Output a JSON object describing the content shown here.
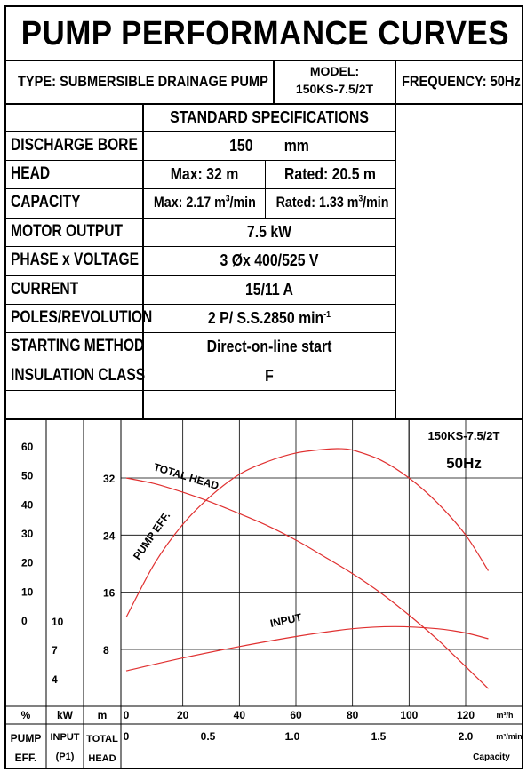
{
  "title": "PUMP PERFORMANCE CURVES",
  "header": {
    "type": "TYPE: SUBMERSIBLE  DRAINAGE  PUMP",
    "model_label": "MODEL:",
    "model_value": "150KS-7.5/2T",
    "frequency": "FREQUENCY: 50Hz"
  },
  "specs": {
    "heading": "STANDARD SPECIFICATIONS",
    "rows": [
      {
        "label": "DISCHARGE BORE",
        "value": "150        mm"
      },
      {
        "label": "HEAD",
        "max": "Max: 32 m",
        "rated": "Rated: 20.5 m"
      },
      {
        "label": "CAPACITY",
        "max_prefix": "Max: 2.17 m",
        "max_sup": "3",
        "max_suffix": "/min",
        "rated_prefix": "Rated: 1.33 m",
        "rated_sup": "3",
        "rated_suffix": "/min"
      },
      {
        "label": "MOTOR OUTPUT",
        "value": "7.5  kW"
      },
      {
        "label": "PHASE x VOLTAGE",
        "value": "3 Øx 400/525 V"
      },
      {
        "label": "CURRENT",
        "value": "15/11 A"
      },
      {
        "label": "POLES/REVOLUTION",
        "value_prefix": "2 P/ S.S.2850 min",
        "value_sup": "-1"
      },
      {
        "label": "STARTING METHOD",
        "value": "Direct-on-line start"
      },
      {
        "label": "INSULATION CLASS",
        "value": "F"
      }
    ]
  },
  "chart_data": {
    "type": "line",
    "model": "150KS-7.5/2T",
    "frequency": "50Hz",
    "x_units": "m³/h",
    "x_ticks": [
      0,
      20,
      40,
      60,
      80,
      100,
      120
    ],
    "xlim": [
      0,
      128
    ],
    "x2_units": "m³/min",
    "x2_ticks": [
      "0",
      "0.5",
      "1.0",
      "1.5",
      "2.0"
    ],
    "x2_label": "Capacity",
    "eff_axis": {
      "unit": "%",
      "ticks": [
        0,
        10,
        20,
        30,
        40,
        50,
        60
      ],
      "label1": "PUMP",
      "label2": "EFF."
    },
    "input_axis": {
      "unit": "kW",
      "ticks": [
        4,
        7,
        10
      ],
      "label1": "INPUT",
      "label2": "(P1)"
    },
    "head_axis": {
      "unit": "m",
      "ticks": [
        8,
        16,
        24,
        32
      ],
      "label1": "TOTAL",
      "label2": "HEAD",
      "ylim": [
        0,
        38
      ]
    },
    "series": [
      {
        "name": "TOTAL HEAD",
        "axis": "head",
        "x": [
          0,
          10,
          20,
          30,
          40,
          50,
          60,
          70,
          80,
          90,
          100,
          110,
          115,
          120,
          128
        ],
        "y": [
          32,
          31.2,
          30,
          28.6,
          27,
          25.3,
          23.3,
          21,
          18.6,
          15.9,
          12.8,
          9.4,
          7.5,
          5.6,
          2.5
        ]
      },
      {
        "name": "PUMP EFF.",
        "axis": "head",
        "x": [
          0,
          10,
          20,
          30,
          40,
          50,
          60,
          70,
          75,
          80,
          90,
          100,
          110,
          120,
          128
        ],
        "y": [
          12.5,
          20,
          25.5,
          29.5,
          32.5,
          34.3,
          35.5,
          36,
          36.1,
          35.9,
          34.5,
          32,
          28.5,
          24,
          19
        ]
      },
      {
        "name": "INPUT",
        "axis": "head",
        "x": [
          0,
          20,
          40,
          60,
          80,
          95,
          110,
          120,
          128
        ],
        "y": [
          5,
          6.8,
          8.4,
          9.8,
          10.9,
          11.2,
          10.9,
          10.3,
          9.5
        ]
      }
    ]
  }
}
